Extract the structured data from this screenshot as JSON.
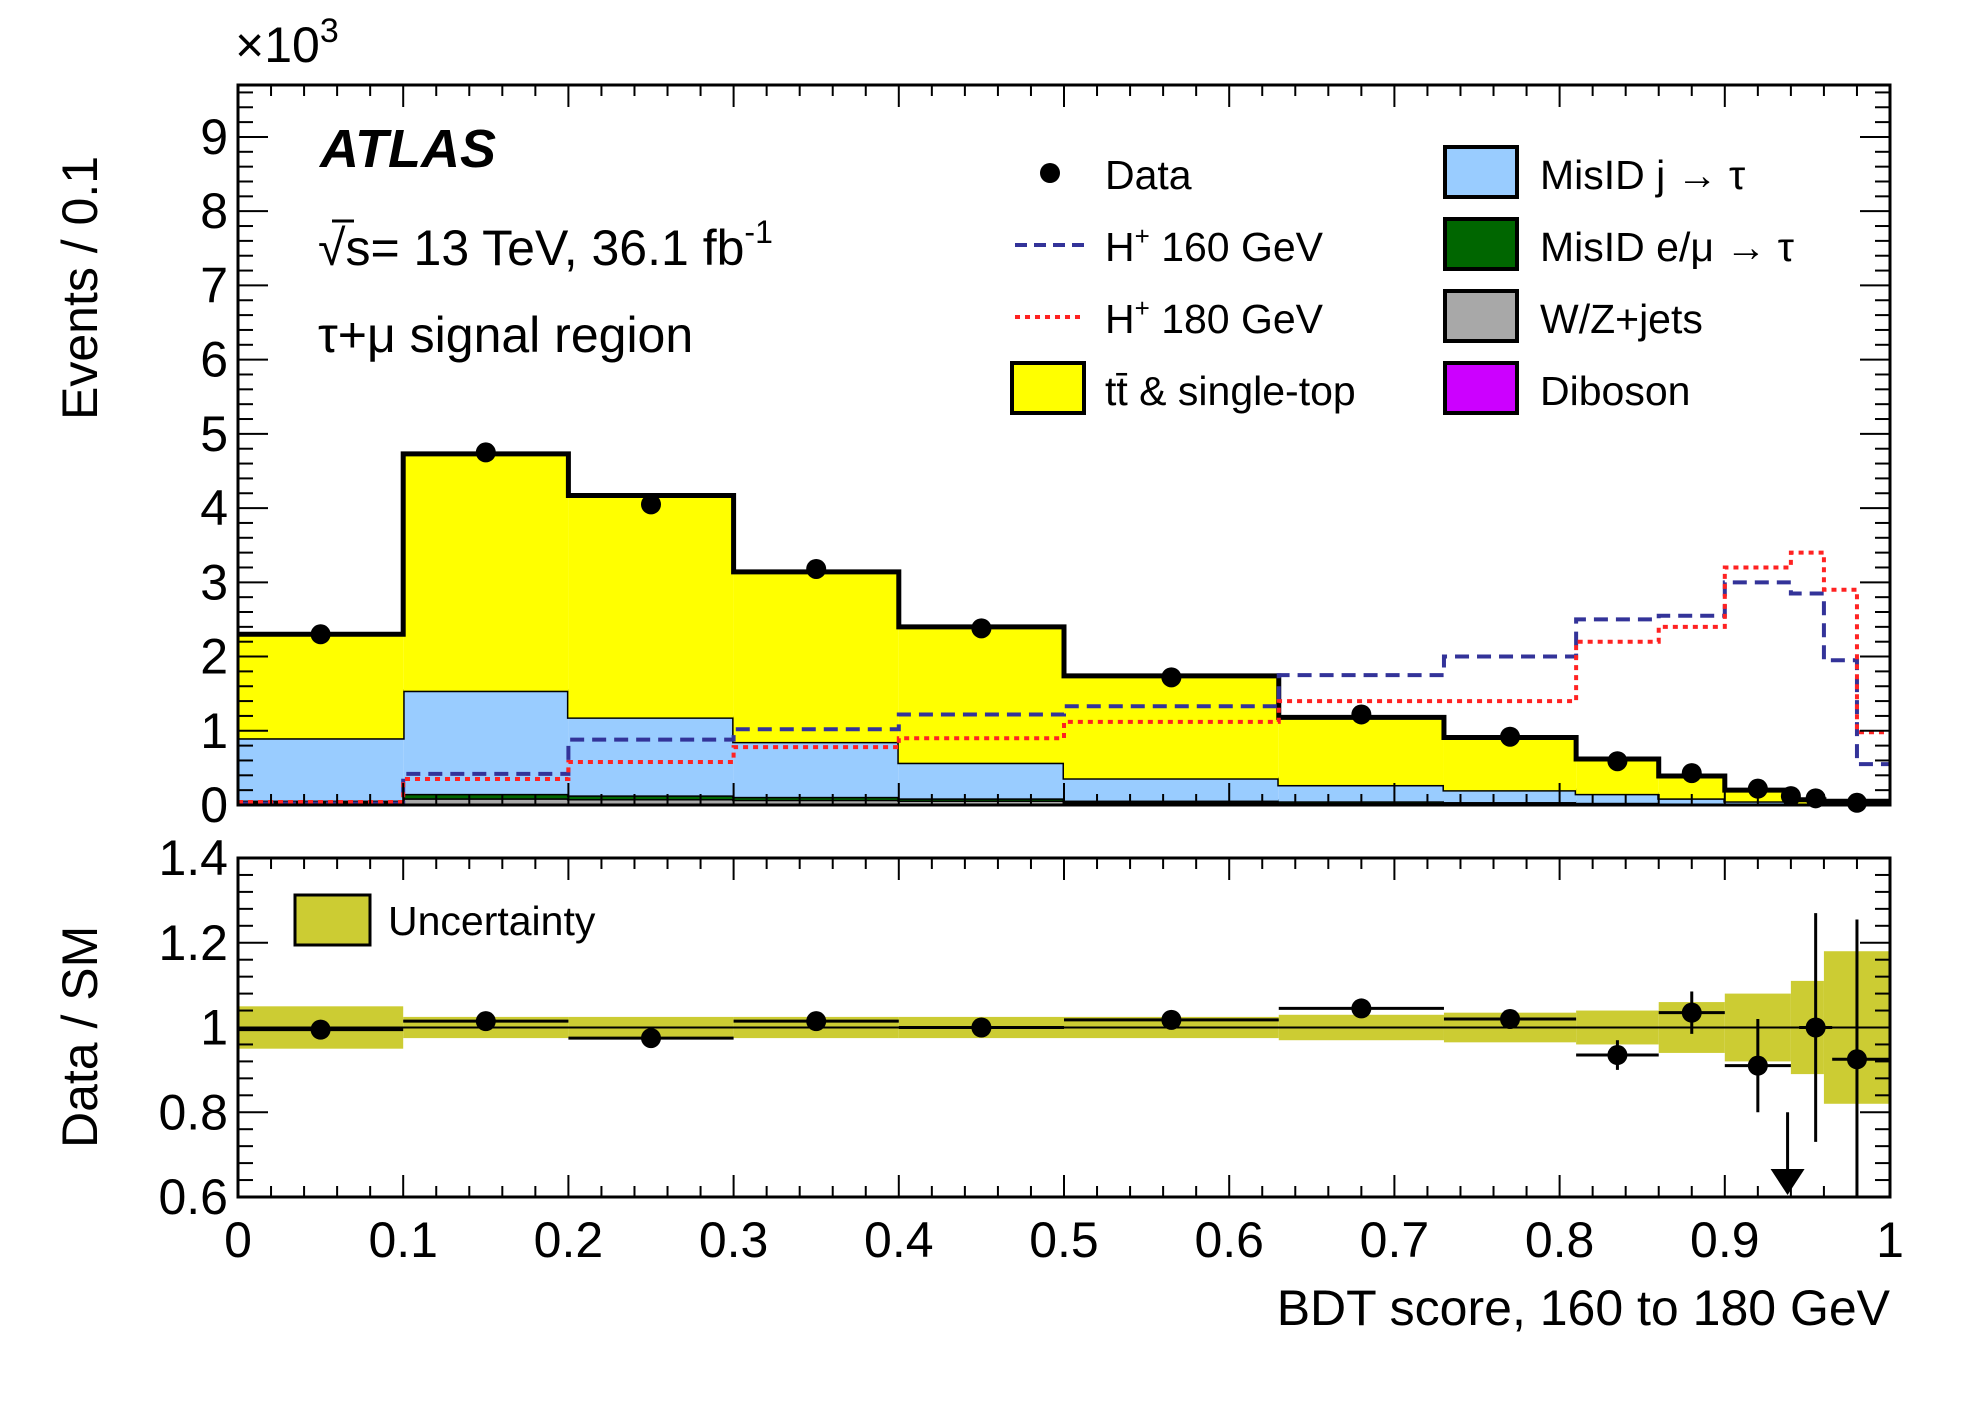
{
  "chart_data": [
    {
      "type": "bar",
      "stacked": true,
      "experiment_label": "ATLAS",
      "energy_label": "= 13 TeV, 36.1 fb",
      "lumi_superscript": "-1",
      "sqrt_label": "√s",
      "region_label": "τ+μ signal region",
      "ylabel": "Events / 0.1",
      "y_multiplier": "×10",
      "y_multiplier_exp": "3",
      "ylim": [
        0,
        9.7
      ],
      "xlim": [
        0,
        1
      ],
      "y_ticks": [
        0,
        1,
        2,
        3,
        4,
        5,
        6,
        7,
        8,
        9
      ],
      "bin_edges": [
        0,
        0.1,
        0.2,
        0.3,
        0.4,
        0.5,
        0.63,
        0.73,
        0.81,
        0.86,
        0.9,
        0.94,
        0.96,
        1.0
      ],
      "series": [
        {
          "name": "Diboson",
          "color": "#cc00ff",
          "values": [
            0.01,
            0.02,
            0.02,
            0.02,
            0.02,
            0.01,
            0.01,
            0.01,
            0.01,
            0.0,
            0.0,
            0.0,
            0.0
          ]
        },
        {
          "name": "W/Z+jets",
          "color": "#a8a8a8",
          "values": [
            0.03,
            0.07,
            0.06,
            0.05,
            0.04,
            0.03,
            0.02,
            0.02,
            0.01,
            0.01,
            0.0,
            0.0,
            0.0
          ]
        },
        {
          "name": "MisID e/μ → τ",
          "color": "#006600",
          "values": [
            0.02,
            0.06,
            0.05,
            0.04,
            0.03,
            0.02,
            0.02,
            0.01,
            0.01,
            0.0,
            0.0,
            0.0,
            0.0
          ]
        },
        {
          "name": "MisID j → τ",
          "color": "#99ccff",
          "values": [
            0.84,
            1.39,
            1.05,
            0.74,
            0.48,
            0.3,
            0.22,
            0.16,
            0.12,
            0.08,
            0.05,
            0.02,
            0.02
          ]
        },
        {
          "name": "tt̄ & single-top",
          "color": "#ffff00",
          "values": [
            1.4,
            3.19,
            2.99,
            2.29,
            1.83,
            1.38,
            0.91,
            0.71,
            0.47,
            0.3,
            0.15,
            0.05,
            0.03
          ]
        }
      ],
      "signals": [
        {
          "name": "H⁺ 160 GeV",
          "color": "#333399",
          "dash": "dashed",
          "values": [
            0.02,
            0.42,
            0.88,
            1.02,
            1.22,
            1.33,
            1.75,
            2.0,
            2.5,
            2.55,
            3.0,
            2.85,
            1.95,
            0.55
          ]
        },
        {
          "name": "H⁺ 180 GeV",
          "color": "#ff2222",
          "dash": "dotted",
          "values": [
            0.04,
            0.35,
            0.58,
            0.78,
            0.9,
            1.12,
            1.4,
            1.4,
            2.2,
            2.4,
            3.2,
            3.4,
            2.9,
            0.98
          ]
        }
      ],
      "data_points": {
        "name": "Data",
        "x": [
          0.05,
          0.15,
          0.25,
          0.35,
          0.45,
          0.565,
          0.68,
          0.77,
          0.835,
          0.88,
          0.92,
          0.94,
          0.955,
          0.98
        ],
        "y": [
          2.3,
          4.75,
          4.05,
          3.18,
          2.38,
          1.72,
          1.22,
          0.92,
          0.59,
          0.43,
          0.22,
          0.12,
          0.09,
          0.03
        ]
      },
      "legend_title": "",
      "legend": [
        {
          "label": "Data"
        },
        {
          "label": "H",
          "sup": "+",
          "rest": " 160 GeV"
        },
        {
          "label": "H",
          "sup": "+",
          "rest": " 180 GeV"
        },
        {
          "label": "tt̄ & single-top"
        },
        {
          "label": "MisID j → τ"
        },
        {
          "label": "MisID e/μ → τ"
        },
        {
          "label": "W/Z+jets"
        },
        {
          "label": "Diboson"
        }
      ]
    },
    {
      "type": "scatter",
      "ylabel": "Data / SM",
      "xlabel": "BDT score, 160 to 180 GeV",
      "ylim": [
        0.6,
        1.4
      ],
      "xlim": [
        0,
        1
      ],
      "y_ticks": [
        0.6,
        0.8,
        1,
        1.2,
        1.4
      ],
      "y_tick_labels": [
        "0.6",
        "0.8",
        "1",
        "1.2",
        "1.4"
      ],
      "x_ticks": [
        0,
        0.1,
        0.2,
        0.3,
        0.4,
        0.5,
        0.6,
        0.7,
        0.8,
        0.9,
        1
      ],
      "x_tick_labels": [
        "0",
        "0.1",
        "0.2",
        "0.3",
        "0.4",
        "0.5",
        "0.6",
        "0.7",
        "0.8",
        "0.9",
        "1"
      ],
      "legend_label": "Uncertainty",
      "uncertainty_color": "#cccc33",
      "uncertainty_band": [
        {
          "lo": 0.0,
          "hi": 0.1,
          "down": 0.95,
          "up": 1.05
        },
        {
          "lo": 0.1,
          "hi": 0.2,
          "down": 0.975,
          "up": 1.025
        },
        {
          "lo": 0.2,
          "hi": 0.3,
          "down": 0.975,
          "up": 1.025
        },
        {
          "lo": 0.3,
          "hi": 0.4,
          "down": 0.975,
          "up": 1.025
        },
        {
          "lo": 0.4,
          "hi": 0.5,
          "down": 0.975,
          "up": 1.025
        },
        {
          "lo": 0.5,
          "hi": 0.63,
          "down": 0.975,
          "up": 1.025
        },
        {
          "lo": 0.63,
          "hi": 0.73,
          "down": 0.97,
          "up": 1.03
        },
        {
          "lo": 0.73,
          "hi": 0.81,
          "down": 0.965,
          "up": 1.035
        },
        {
          "lo": 0.81,
          "hi": 0.86,
          "down": 0.96,
          "up": 1.04
        },
        {
          "lo": 0.86,
          "hi": 0.9,
          "down": 0.94,
          "up": 1.06
        },
        {
          "lo": 0.9,
          "hi": 0.94,
          "down": 0.92,
          "up": 1.08
        },
        {
          "lo": 0.94,
          "hi": 0.96,
          "down": 0.89,
          "up": 1.11
        },
        {
          "lo": 0.96,
          "hi": 1.0,
          "down": 0.82,
          "up": 1.18
        }
      ],
      "ratio_points": [
        {
          "x": 0.05,
          "y": 0.995,
          "xlo": 0.0,
          "xhi": 0.1,
          "elo": 0.005,
          "ehi": 0.005
        },
        {
          "x": 0.15,
          "y": 1.015,
          "xlo": 0.1,
          "xhi": 0.2,
          "elo": 0.005,
          "ehi": 0.005
        },
        {
          "x": 0.25,
          "y": 0.975,
          "xlo": 0.2,
          "xhi": 0.3,
          "elo": 0.005,
          "ehi": 0.005
        },
        {
          "x": 0.35,
          "y": 1.015,
          "xlo": 0.3,
          "xhi": 0.4,
          "elo": 0.005,
          "ehi": 0.005
        },
        {
          "x": 0.45,
          "y": 1.0,
          "xlo": 0.4,
          "xhi": 0.5,
          "elo": 0.005,
          "ehi": 0.005
        },
        {
          "x": 0.565,
          "y": 1.018,
          "xlo": 0.5,
          "xhi": 0.63,
          "elo": 0.008,
          "ehi": 0.008
        },
        {
          "x": 0.68,
          "y": 1.045,
          "xlo": 0.63,
          "xhi": 0.73,
          "elo": 0.01,
          "ehi": 0.01
        },
        {
          "x": 0.77,
          "y": 1.02,
          "xlo": 0.73,
          "xhi": 0.81,
          "elo": 0.02,
          "ehi": 0.02
        },
        {
          "x": 0.835,
          "y": 0.935,
          "xlo": 0.81,
          "xhi": 0.86,
          "elo": 0.035,
          "ehi": 0.035
        },
        {
          "x": 0.88,
          "y": 1.035,
          "xlo": 0.86,
          "xhi": 0.9,
          "elo": 0.05,
          "ehi": 0.05
        },
        {
          "x": 0.92,
          "y": 0.91,
          "xlo": 0.9,
          "xhi": 0.94,
          "elo": 0.11,
          "ehi": 0.11
        },
        {
          "x": 0.955,
          "y": 1.0,
          "xlo": 0.945,
          "xhi": 0.965,
          "elo": 0.27,
          "ehi": 0.27
        },
        {
          "x": 0.98,
          "y": 0.925,
          "xlo": 0.965,
          "xhi": 1.0,
          "elo": 0.33,
          "ehi": 0.33
        }
      ],
      "off_scale_arrow_x": 0.938,
      "reference_line": 1
    }
  ]
}
